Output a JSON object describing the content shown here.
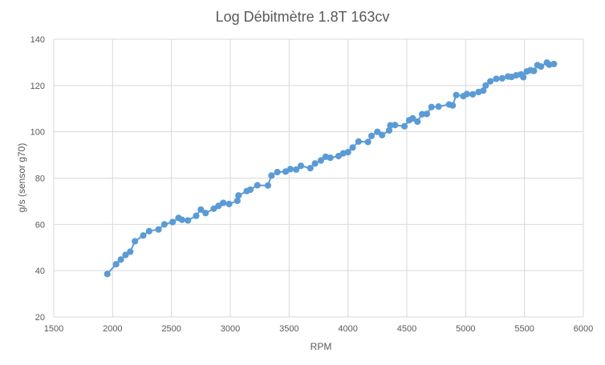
{
  "chart_data": {
    "type": "line",
    "title": "Log Débitmètre 1.8T 163cv",
    "xlabel": "RPM",
    "ylabel": "g/s (sensor g70)",
    "xlim": [
      1500,
      6000
    ],
    "ylim": [
      20,
      140
    ],
    "xticks": [
      1500,
      2000,
      2500,
      3000,
      3500,
      4000,
      4500,
      5000,
      5500,
      6000
    ],
    "yticks": [
      20,
      40,
      60,
      80,
      100,
      120,
      140
    ],
    "grid": true,
    "legend": "none",
    "color": "#5b9bd5",
    "series": [
      {
        "x": [
          1955,
          2030,
          2070,
          2110,
          2150,
          2190,
          2260,
          2310,
          2390,
          2440,
          2510,
          2560,
          2590,
          2640,
          2710,
          2750,
          2790,
          2860,
          2900,
          2940,
          2990,
          3060,
          3070,
          3140,
          3170,
          3230,
          3320,
          3350,
          3400,
          3470,
          3510,
          3560,
          3600,
          3680,
          3720,
          3770,
          3810,
          3850,
          3920,
          3960,
          4000,
          4040,
          4090,
          4170,
          4200,
          4250,
          4290,
          4350,
          4360,
          4400,
          4480,
          4520,
          4550,
          4590,
          4630,
          4670,
          4710,
          4770,
          4860,
          4890,
          4920,
          4980,
          5010,
          5060,
          5110,
          5150,
          5170,
          5210,
          5260,
          5310,
          5360,
          5390,
          5430,
          5470,
          5490,
          5520,
          5550,
          5580,
          5610,
          5640,
          5690,
          5710,
          5750
        ],
        "y": [
          38.6,
          42.8,
          44.8,
          46.8,
          48.2,
          52.7,
          55.2,
          57.1,
          57.8,
          60.0,
          61.0,
          62.8,
          62.0,
          61.7,
          63.7,
          66.4,
          64.9,
          66.8,
          68.0,
          69.3,
          68.8,
          70.2,
          72.5,
          74.4,
          75.0,
          76.9,
          76.8,
          81.1,
          82.6,
          82.8,
          83.9,
          83.7,
          85.3,
          84.3,
          86.3,
          87.6,
          89.2,
          88.8,
          89.5,
          90.7,
          91.2,
          93.2,
          95.8,
          95.6,
          98.2,
          100.0,
          98.6,
          100.6,
          102.8,
          102.9,
          102.4,
          105.0,
          105.8,
          104.4,
          107.6,
          107.7,
          110.7,
          110.9,
          111.8,
          111.4,
          115.9,
          115.4,
          116.3,
          116.2,
          117.2,
          117.8,
          120.0,
          121.8,
          122.9,
          123.1,
          123.9,
          123.7,
          124.4,
          124.8,
          123.6,
          126.1,
          126.6,
          126.3,
          128.8,
          128.2,
          129.9,
          129.0,
          129.3
        ]
      }
    ]
  }
}
